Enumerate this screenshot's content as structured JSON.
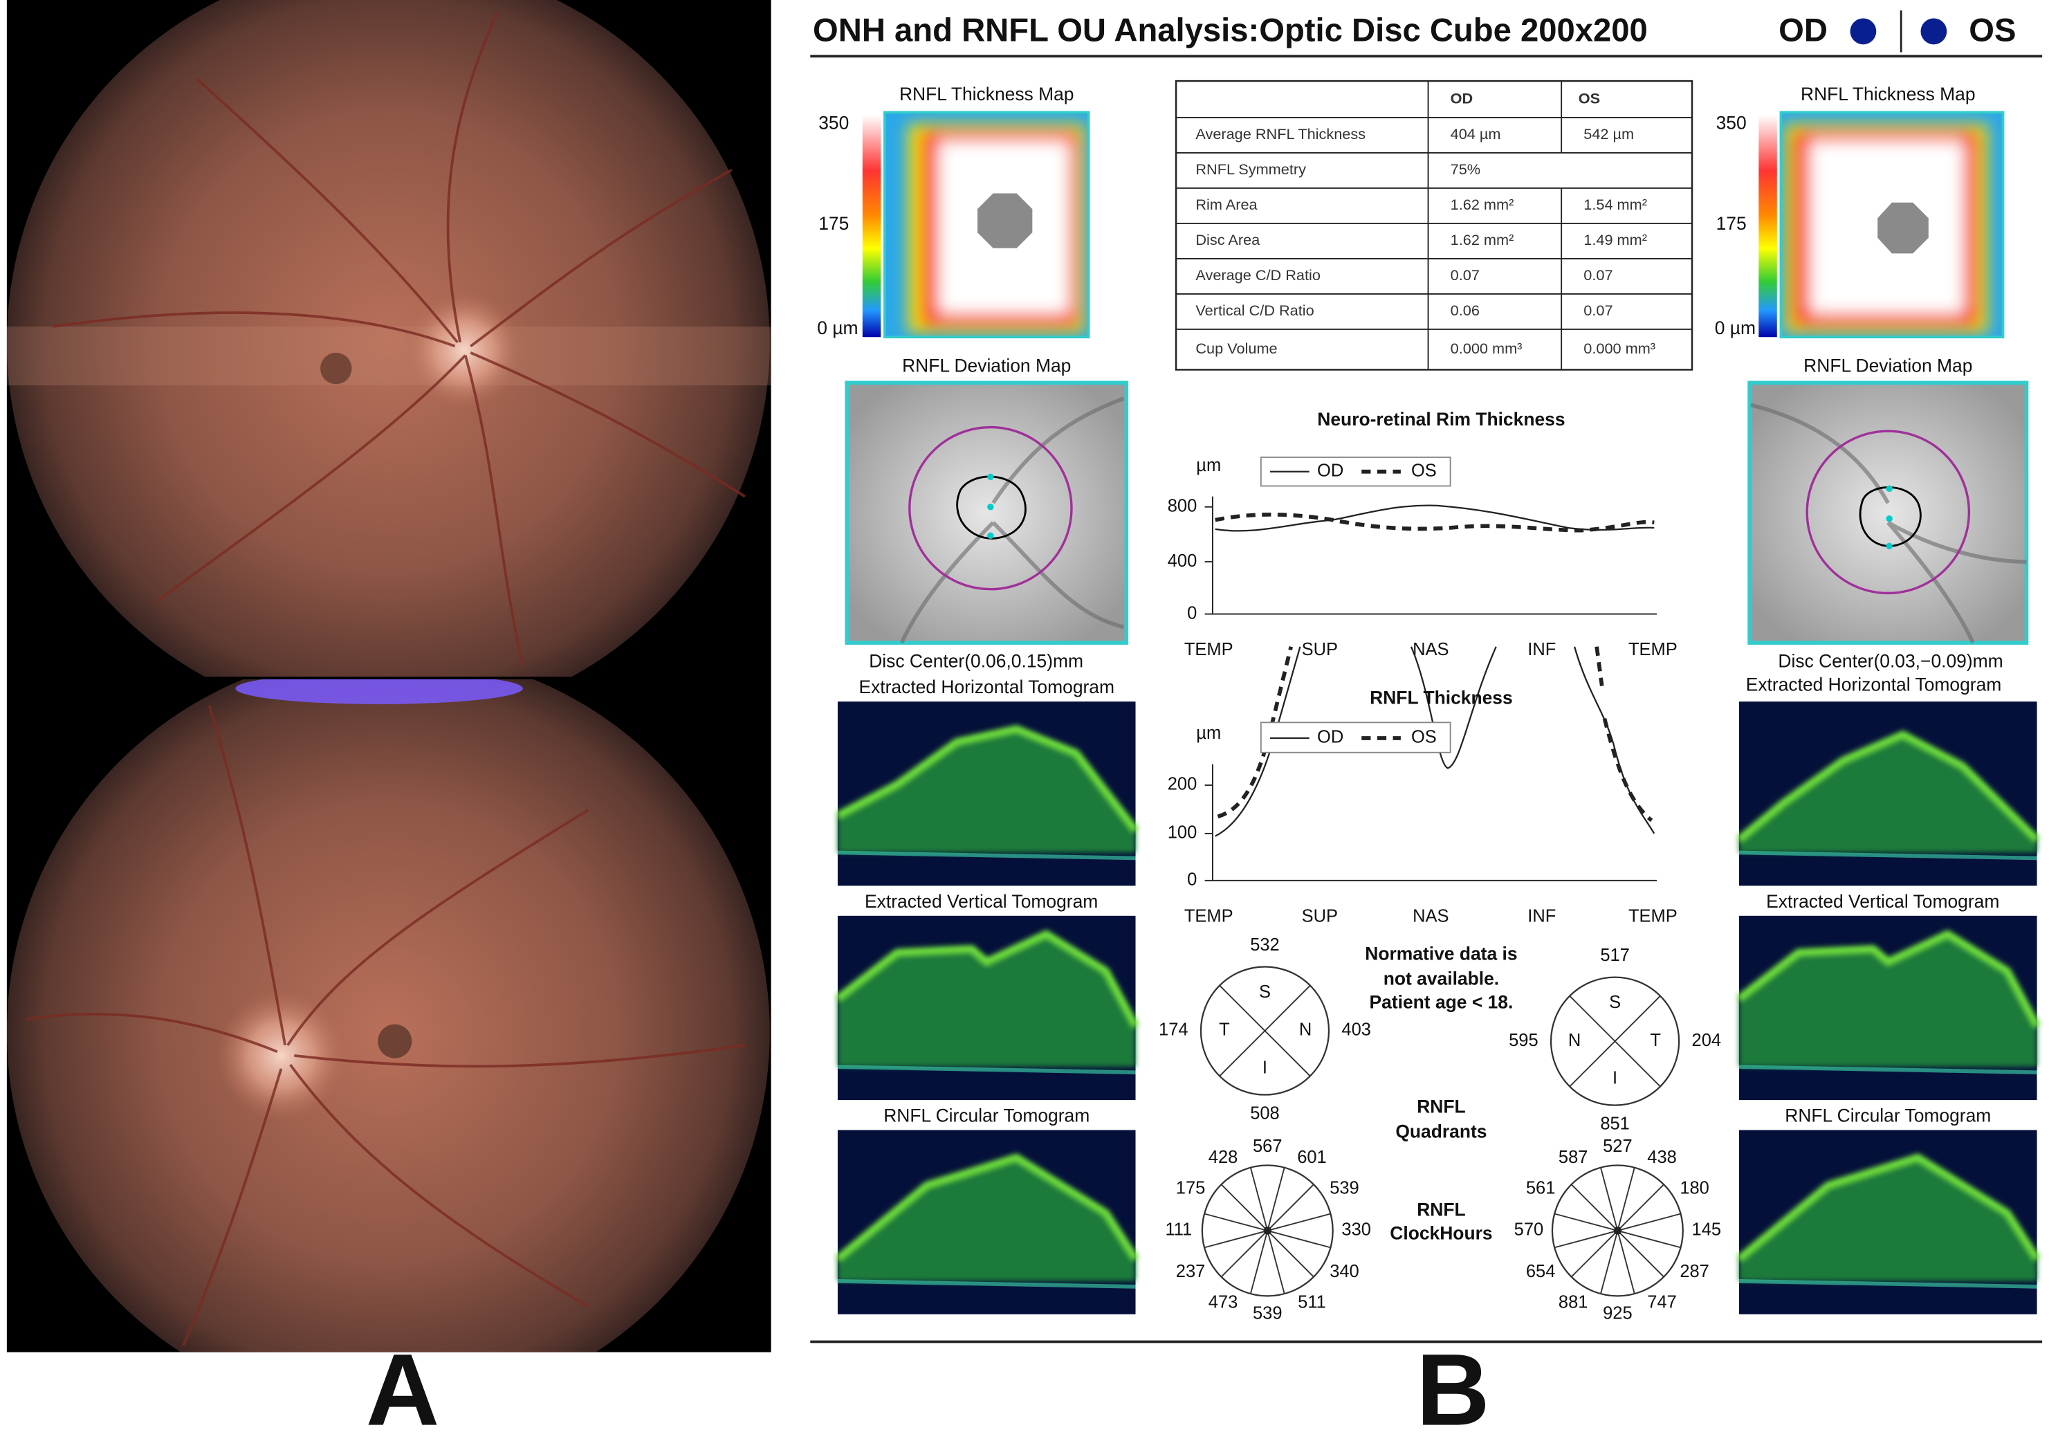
{
  "panel_labels": [
    "A",
    "B"
  ],
  "report": {
    "title": "ONH and RNFL OU Analysis:Optic Disc Cube 200x200",
    "eyes": [
      "OD",
      "OS"
    ],
    "od": {
      "thickness_map_title": "RNFL Thickness Map",
      "scale": [
        "350",
        "175",
        "0 µm"
      ],
      "deviation_map_title": "RNFL Deviation Map",
      "disc_center": "Disc Center(0.06,0.15)mm",
      "horizontal": "Extracted Horizontal Tomogram",
      "vertical": "Extracted Vertical Tomogram",
      "circular": "RNFL Circular Tomogram"
    },
    "os": {
      "thickness_map_title": "RNFL Thickness Map",
      "scale": [
        "350",
        "175",
        "0 µm"
      ],
      "deviation_map_title": "RNFL Deviation Map",
      "disc_center": "Disc Center(0.03,−0.09)mm",
      "horizontal": "Extracted Horizontal Tomogram",
      "vertical": "Extracted Vertical Tomogram",
      "circular": "RNFL Circular Tomogram"
    },
    "table": {
      "columns": [
        "OD",
        "OS"
      ],
      "rows": [
        [
          "Average RNFL Thickness",
          "404 µm",
          "542 µm"
        ],
        [
          "RNFL Symmetry",
          "75%"
        ],
        [
          "Rim Area",
          "1.62 mm²",
          "1.54 mm²"
        ],
        [
          "Disc Area",
          "1.62 mm²",
          "1.49 mm²"
        ],
        [
          "Average C/D Ratio",
          "0.07",
          "0.07"
        ],
        [
          "Vertical C/D Ratio",
          "0.06",
          "0.07"
        ],
        [
          "Cup Volume",
          "0.000 mm³",
          "0.000 mm³"
        ]
      ]
    },
    "rim_chart": {
      "title": "Neuro-retinal Rim Thickness",
      "unit": "µm",
      "legend": [
        "OD",
        "OS"
      ],
      "yticks": [
        "800",
        "400",
        "0"
      ],
      "xlabels": [
        "TEMP",
        "SUP",
        "NAS",
        "INF",
        "TEMP"
      ]
    },
    "rnfl_chart": {
      "title": "RNFL Thickness",
      "unit": "µm",
      "legend": [
        "OD",
        "OS"
      ],
      "yticks": [
        "200",
        "100",
        "0"
      ],
      "xlabels": [
        "TEMP",
        "SUP",
        "NAS",
        "INF",
        "TEMP"
      ]
    },
    "normative_note": [
      "Normative data is",
      "not available.",
      "Patient age < 18."
    ],
    "quadrants": {
      "label": [
        "RNFL",
        "Quadrants"
      ],
      "od": [
        {
          "letter": "S",
          "value": 532
        },
        {
          "letter": "T",
          "value": 174
        },
        {
          "letter": "N",
          "value": 403
        },
        {
          "letter": "I",
          "value": 508
        }
      ],
      "os": [
        {
          "letter": "S",
          "value": 517
        },
        {
          "letter": "N",
          "value": 595
        },
        {
          "letter": "T",
          "value": 204
        },
        {
          "letter": "I",
          "value": 851
        }
      ]
    },
    "clock_hours": {
      "label": [
        "RNFL",
        "ClockHours"
      ],
      "od": [
        567,
        601,
        539,
        330,
        340,
        511,
        539,
        473,
        237,
        111,
        175,
        428
      ],
      "os": [
        527,
        438,
        180,
        145,
        287,
        747,
        925,
        881,
        654,
        570,
        561,
        587
      ]
    }
  }
}
